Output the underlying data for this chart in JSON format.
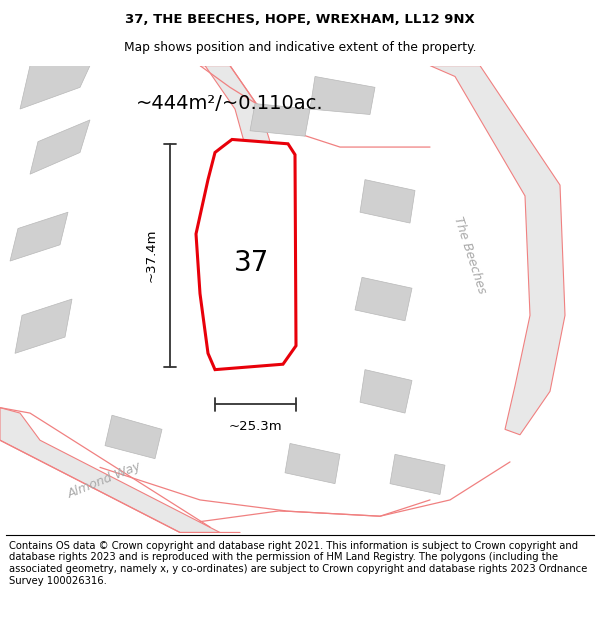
{
  "title_line1": "37, THE BEECHES, HOPE, WREXHAM, LL12 9NX",
  "title_line2": "Map shows position and indicative extent of the property.",
  "area_text": "~444m²/~0.110ac.",
  "number_label": "37",
  "dim_vertical": "~37.4m",
  "dim_horizontal": "~25.3m",
  "street_label_1": "Almond Way",
  "street_label_2": "The Beeches",
  "footer_text": "Contains OS data © Crown copyright and database right 2021. This information is subject to Crown copyright and database rights 2023 and is reproduced with the permission of HM Land Registry. The polygons (including the associated geometry, namely x, y co-ordinates) are subject to Crown copyright and database rights 2023 Ordnance Survey 100026316.",
  "bg_color": "#f0f0f0",
  "map_bg": "#f0f0f0",
  "plot_fill": "#ffffff",
  "plot_edge": "#e8000a",
  "road_fill": "#e8e8e8",
  "building_fill": "#d0d0d0",
  "road_line": "#f08080",
  "title_fontsize": 9.5,
  "footer_fontsize": 7.2
}
